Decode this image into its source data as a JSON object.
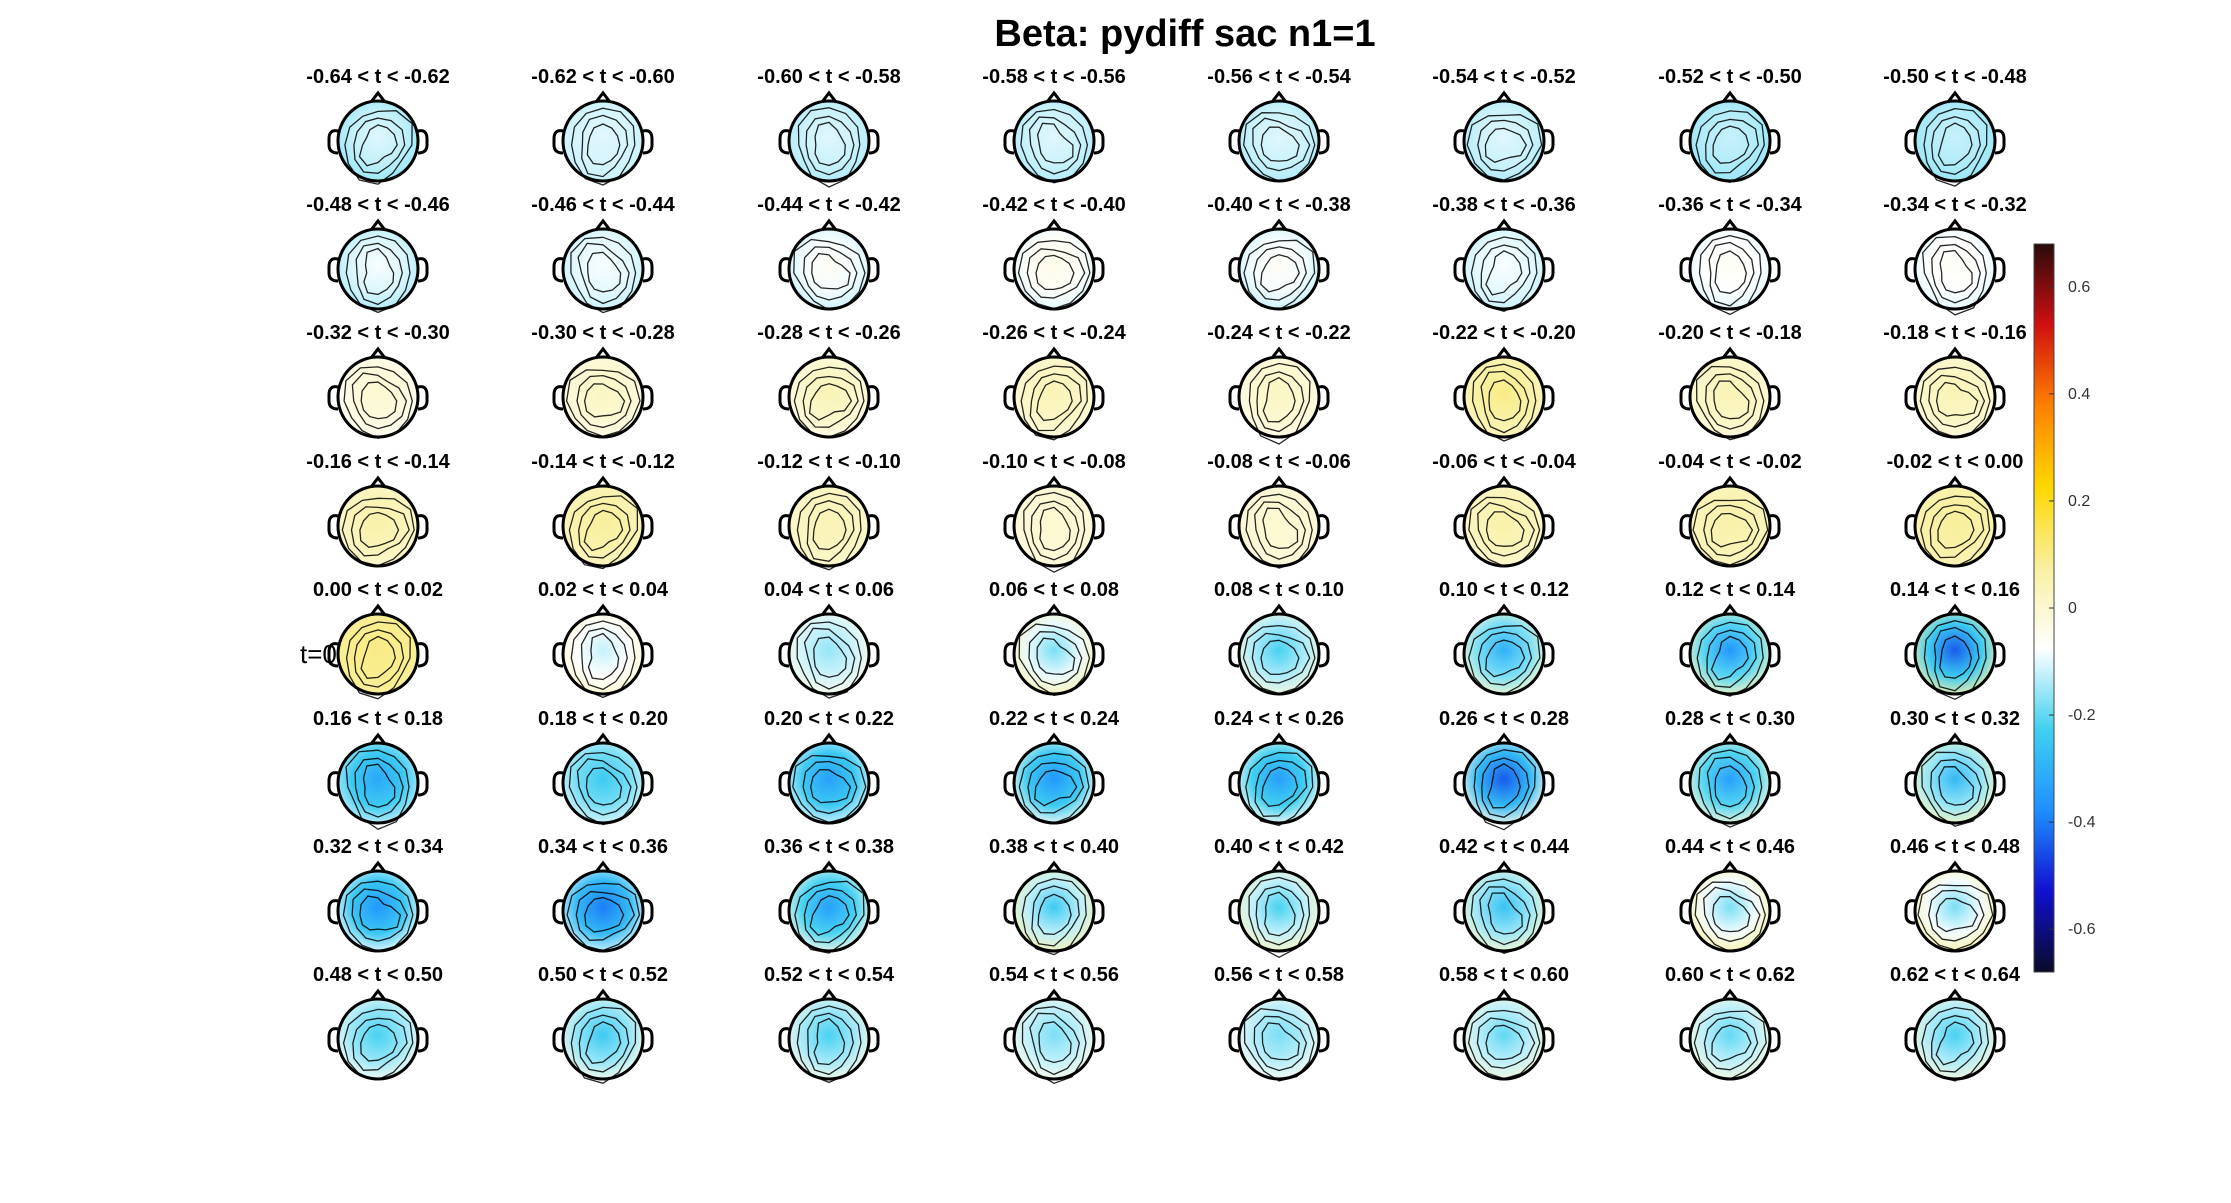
{
  "chart_data": {
    "type": "heatmap",
    "title": "Beta: pydiff sac  n1=1",
    "zero_marker": "t=0",
    "panel_labels": [
      "-0.64 < t < -0.62",
      "-0.62 < t < -0.60",
      "-0.60 < t < -0.58",
      "-0.58 < t < -0.56",
      "-0.56 < t < -0.54",
      "-0.54 < t < -0.52",
      "-0.52 < t < -0.50",
      "-0.50 < t < -0.48",
      "-0.48 < t < -0.46",
      "-0.46 < t < -0.44",
      "-0.44 < t < -0.42",
      "-0.42 < t < -0.40",
      "-0.40 < t < -0.38",
      "-0.38 < t < -0.36",
      "-0.36 < t < -0.34",
      "-0.34 < t < -0.32",
      "-0.32 < t < -0.30",
      "-0.30 < t < -0.28",
      "-0.28 < t < -0.26",
      "-0.26 < t < -0.24",
      "-0.24 < t < -0.22",
      "-0.22 < t < -0.20",
      "-0.20 < t < -0.18",
      "-0.18 < t < -0.16",
      "-0.16 < t < -0.14",
      "-0.14 < t < -0.12",
      "-0.12 < t < -0.10",
      "-0.10 < t < -0.08",
      "-0.08 < t < -0.06",
      "-0.06 < t < -0.04",
      "-0.04 < t < -0.02",
      "-0.02 < t < 0.00",
      "0.00 < t < 0.02",
      "0.02 < t < 0.04",
      "0.04 < t < 0.06",
      "0.06 < t < 0.08",
      "0.08 < t < 0.10",
      "0.10 < t < 0.12",
      "0.12 < t < 0.14",
      "0.14 < t < 0.16",
      "0.16 < t < 0.18",
      "0.18 < t < 0.20",
      "0.20 < t < 0.22",
      "0.22 < t < 0.24",
      "0.24 < t < 0.26",
      "0.26 < t < 0.28",
      "0.28 < t < 0.30",
      "0.30 < t < 0.32",
      "0.32 < t < 0.34",
      "0.34 < t < 0.36",
      "0.36 < t < 0.38",
      "0.38 < t < 0.40",
      "0.40 < t < 0.42",
      "0.42 < t < 0.44",
      "0.44 < t < 0.46",
      "0.46 < t < 0.48",
      "0.48 < t < 0.50",
      "0.50 < t < 0.52",
      "0.52 < t < 0.54",
      "0.54 < t < 0.56",
      "0.56 < t < 0.58",
      "0.58 < t < 0.60",
      "0.60 < t < 0.62",
      "0.62 < t < 0.64"
    ],
    "panel_values": {
      "note_units": "approximate central value of topography (beta)",
      "center": [
        -0.1,
        -0.1,
        -0.1,
        -0.1,
        -0.1,
        -0.1,
        -0.12,
        -0.12,
        -0.08,
        -0.08,
        -0.06,
        -0.04,
        -0.06,
        -0.08,
        -0.06,
        -0.06,
        0.0,
        0.02,
        0.04,
        0.04,
        0.02,
        0.1,
        0.04,
        0.04,
        0.06,
        0.08,
        0.04,
        0.0,
        0.0,
        0.06,
        0.06,
        0.08,
        0.1,
        -0.12,
        -0.16,
        -0.18,
        -0.22,
        -0.3,
        -0.36,
        -0.44,
        -0.32,
        -0.24,
        -0.34,
        -0.36,
        -0.34,
        -0.44,
        -0.34,
        -0.28,
        -0.36,
        -0.4,
        -0.34,
        -0.24,
        -0.22,
        -0.26,
        -0.18,
        -0.18,
        -0.22,
        -0.24,
        -0.22,
        -0.18,
        -0.18,
        -0.2,
        -0.2,
        -0.22
      ],
      "periphery": [
        -0.16,
        -0.12,
        -0.14,
        -0.14,
        -0.14,
        -0.14,
        -0.16,
        -0.16,
        -0.14,
        -0.12,
        -0.12,
        -0.1,
        -0.12,
        -0.12,
        -0.1,
        -0.1,
        -0.06,
        -0.04,
        -0.04,
        -0.02,
        -0.04,
        0.02,
        -0.02,
        -0.02,
        0.0,
        0.02,
        0.0,
        -0.02,
        -0.02,
        0.0,
        0.02,
        0.04,
        0.08,
        0.0,
        -0.04,
        0.04,
        -0.02,
        0.0,
        0.02,
        0.06,
        -0.12,
        -0.1,
        -0.1,
        -0.06,
        -0.06,
        -0.04,
        -0.02,
        0.02,
        -0.08,
        -0.1,
        -0.04,
        0.04,
        0.02,
        0.0,
        0.06,
        0.06,
        -0.06,
        -0.04,
        -0.04,
        -0.04,
        -0.06,
        -0.02,
        -0.02,
        -0.02
      ]
    },
    "colorbar": {
      "range": [
        -0.68,
        0.68
      ],
      "ticks": [
        0.6,
        0.4,
        0.2,
        0,
        -0.2,
        -0.4,
        -0.6
      ],
      "tick_labels": [
        "0.6",
        "0.4",
        "0.2",
        "0",
        "-0.2",
        "-0.4",
        "-0.6"
      ],
      "colormap": [
        "#0a0a2a",
        "#1010d0",
        "#1e90ff",
        "#40d0f0",
        "#ffffff",
        "#f8f0a0",
        "#ffd700",
        "#ff8000",
        "#d01010",
        "#2a0a0a"
      ]
    },
    "grid": false,
    "layout": "8 columns x 8 rows"
  }
}
